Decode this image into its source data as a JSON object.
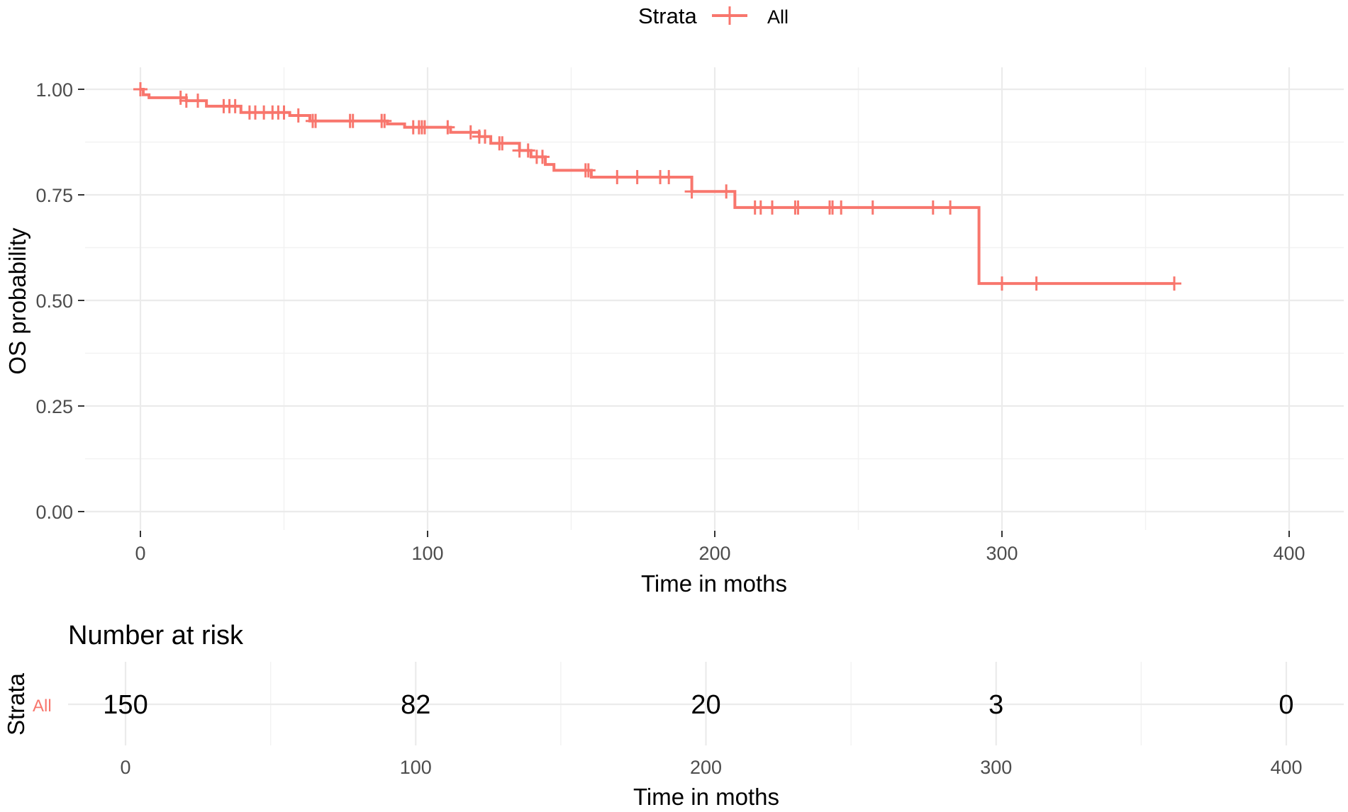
{
  "colors": {
    "series": "#F8766D",
    "grid": "#ebebeb",
    "tick_text": "#4d4d4d"
  },
  "legend": {
    "title": "Strata",
    "label": "All",
    "position": "top"
  },
  "risk_table": {
    "title": "Number at risk",
    "strata_axis_title": "Strata",
    "strata_label": "All",
    "times": [
      0,
      100,
      200,
      300,
      400
    ],
    "counts": [
      "150",
      "82",
      "20",
      "3",
      "0"
    ],
    "tick_labels": [
      "0",
      "100",
      "200",
      "300",
      "400"
    ],
    "xlabel": "Time in moths"
  },
  "chart_data": {
    "type": "line",
    "subtype": "kaplan-meier step",
    "xlabel": "Time in moths",
    "ylabel": "OS probability",
    "xlim": [
      0,
      400
    ],
    "ylim": [
      0,
      1
    ],
    "x_ticks": [
      0,
      100,
      200,
      300,
      400
    ],
    "x_tick_labels": [
      "0",
      "100",
      "200",
      "300",
      "400"
    ],
    "y_ticks": [
      0,
      0.25,
      0.5,
      0.75,
      1.0
    ],
    "y_tick_labels": [
      "0.00",
      "0.25",
      "0.50",
      "0.75",
      "1.00"
    ],
    "grid": true,
    "series": [
      {
        "name": "All",
        "color": "#F8766D",
        "steps": [
          [
            0,
            1.0
          ],
          [
            1,
            0.987
          ],
          [
            3,
            0.98
          ],
          [
            16,
            0.973
          ],
          [
            23,
            0.96
          ],
          [
            35,
            0.945
          ],
          [
            52,
            0.938
          ],
          [
            59,
            0.925
          ],
          [
            86,
            0.918
          ],
          [
            92,
            0.91
          ],
          [
            108,
            0.898
          ],
          [
            118,
            0.888
          ],
          [
            122,
            0.872
          ],
          [
            132,
            0.855
          ],
          [
            136,
            0.84
          ],
          [
            141,
            0.822
          ],
          [
            144,
            0.808
          ],
          [
            157,
            0.792
          ],
          [
            192,
            0.758
          ],
          [
            207,
            0.72
          ],
          [
            292,
            0.54
          ],
          [
            360,
            0.54
          ]
        ],
        "censor_times": [
          0,
          14,
          16,
          20,
          29,
          31,
          33,
          38,
          40,
          43,
          46,
          48,
          50,
          55,
          60,
          61,
          73,
          74,
          84,
          85,
          95,
          97,
          98,
          99,
          107,
          115,
          118,
          120,
          125,
          126,
          132,
          135,
          138,
          140,
          155,
          156,
          166,
          173,
          181,
          184,
          192,
          204,
          214,
          216,
          220,
          228,
          229,
          240,
          241,
          244,
          255,
          276,
          282,
          300,
          312,
          360
        ]
      }
    ]
  }
}
